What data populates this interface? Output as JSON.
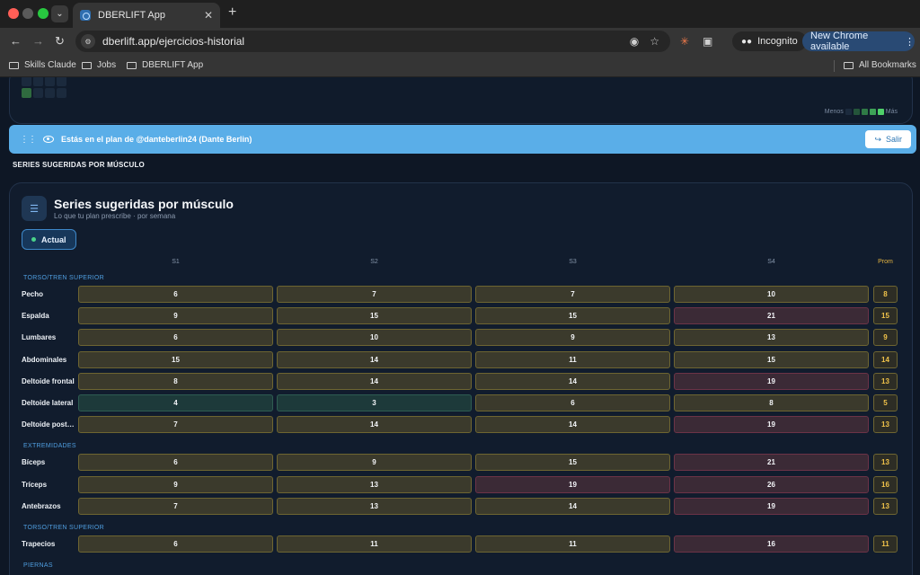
{
  "browser": {
    "tab_title": "DBERLIFT App",
    "url": "dberlift.app/ejercicios-historial",
    "incognito_label": "Incognito",
    "update_label": "New Chrome available",
    "bookmarks": [
      "Skills Claude",
      "Jobs",
      "DBERLIFT App"
    ],
    "all_bookmarks": "All Bookmarks"
  },
  "heatmap": {
    "legend_less": "Menos",
    "legend_more": "Más"
  },
  "banner": {
    "text": "Estás en el plan de @danteberlin24 (Dante Berlin)",
    "exit_label": "Salir"
  },
  "section_heading": "SERIES SUGERIDAS POR MÚSCULO",
  "card": {
    "title": "Series sugeridas por músculo",
    "subtitle": "Lo que tu plan prescribe · por semana",
    "chip_label": "Actual"
  },
  "columns": [
    "S1",
    "S2",
    "S3",
    "S4"
  ],
  "prom_label": "Prom",
  "groups": [
    {
      "label": "TORSO/TREN SUPERIOR",
      "rows": [
        {
          "name": "Pecho",
          "values": [
            6,
            7,
            7,
            10
          ],
          "levels": [
            "y",
            "y",
            "y",
            "y"
          ],
          "prom": 8
        },
        {
          "name": "Espalda",
          "values": [
            9,
            15,
            15,
            21
          ],
          "levels": [
            "y",
            "y",
            "y",
            "r"
          ],
          "prom": 15
        },
        {
          "name": "Lumbares",
          "values": [
            6,
            10,
            9,
            13
          ],
          "levels": [
            "y",
            "y",
            "y",
            "y"
          ],
          "prom": 9
        },
        {
          "name": "Abdominales",
          "values": [
            15,
            14,
            11,
            15
          ],
          "levels": [
            "y",
            "y",
            "y",
            "y"
          ],
          "prom": 14
        },
        {
          "name": "Deltoide frontal",
          "values": [
            8,
            14,
            14,
            19
          ],
          "levels": [
            "y",
            "y",
            "y",
            "r"
          ],
          "prom": 13
        },
        {
          "name": "Deltoide lateral",
          "values": [
            4,
            3,
            6,
            8
          ],
          "levels": [
            "g",
            "g",
            "y",
            "y"
          ],
          "prom": 5
        },
        {
          "name": "Deltoide posterior",
          "display": "Deltoide poster...",
          "values": [
            7,
            14,
            14,
            19
          ],
          "levels": [
            "y",
            "y",
            "y",
            "r"
          ],
          "prom": 13
        }
      ]
    },
    {
      "label": "EXTREMIDADES",
      "rows": [
        {
          "name": "Bíceps",
          "values": [
            6,
            9,
            15,
            21
          ],
          "levels": [
            "y",
            "y",
            "y",
            "r"
          ],
          "prom": 13
        },
        {
          "name": "Tríceps",
          "values": [
            9,
            13,
            19,
            26
          ],
          "levels": [
            "y",
            "y",
            "r",
            "r"
          ],
          "prom": 16
        },
        {
          "name": "Antebrazos",
          "values": [
            7,
            13,
            14,
            19
          ],
          "levels": [
            "y",
            "y",
            "y",
            "r"
          ],
          "prom": 13
        }
      ]
    },
    {
      "label": "TORSO/TREN SUPERIOR",
      "rows": [
        {
          "name": "Trapecios",
          "values": [
            6,
            11,
            11,
            16
          ],
          "levels": [
            "y",
            "y",
            "y",
            "r"
          ],
          "prom": 11
        }
      ]
    },
    {
      "label": "PIERNAS",
      "rows": []
    }
  ]
}
